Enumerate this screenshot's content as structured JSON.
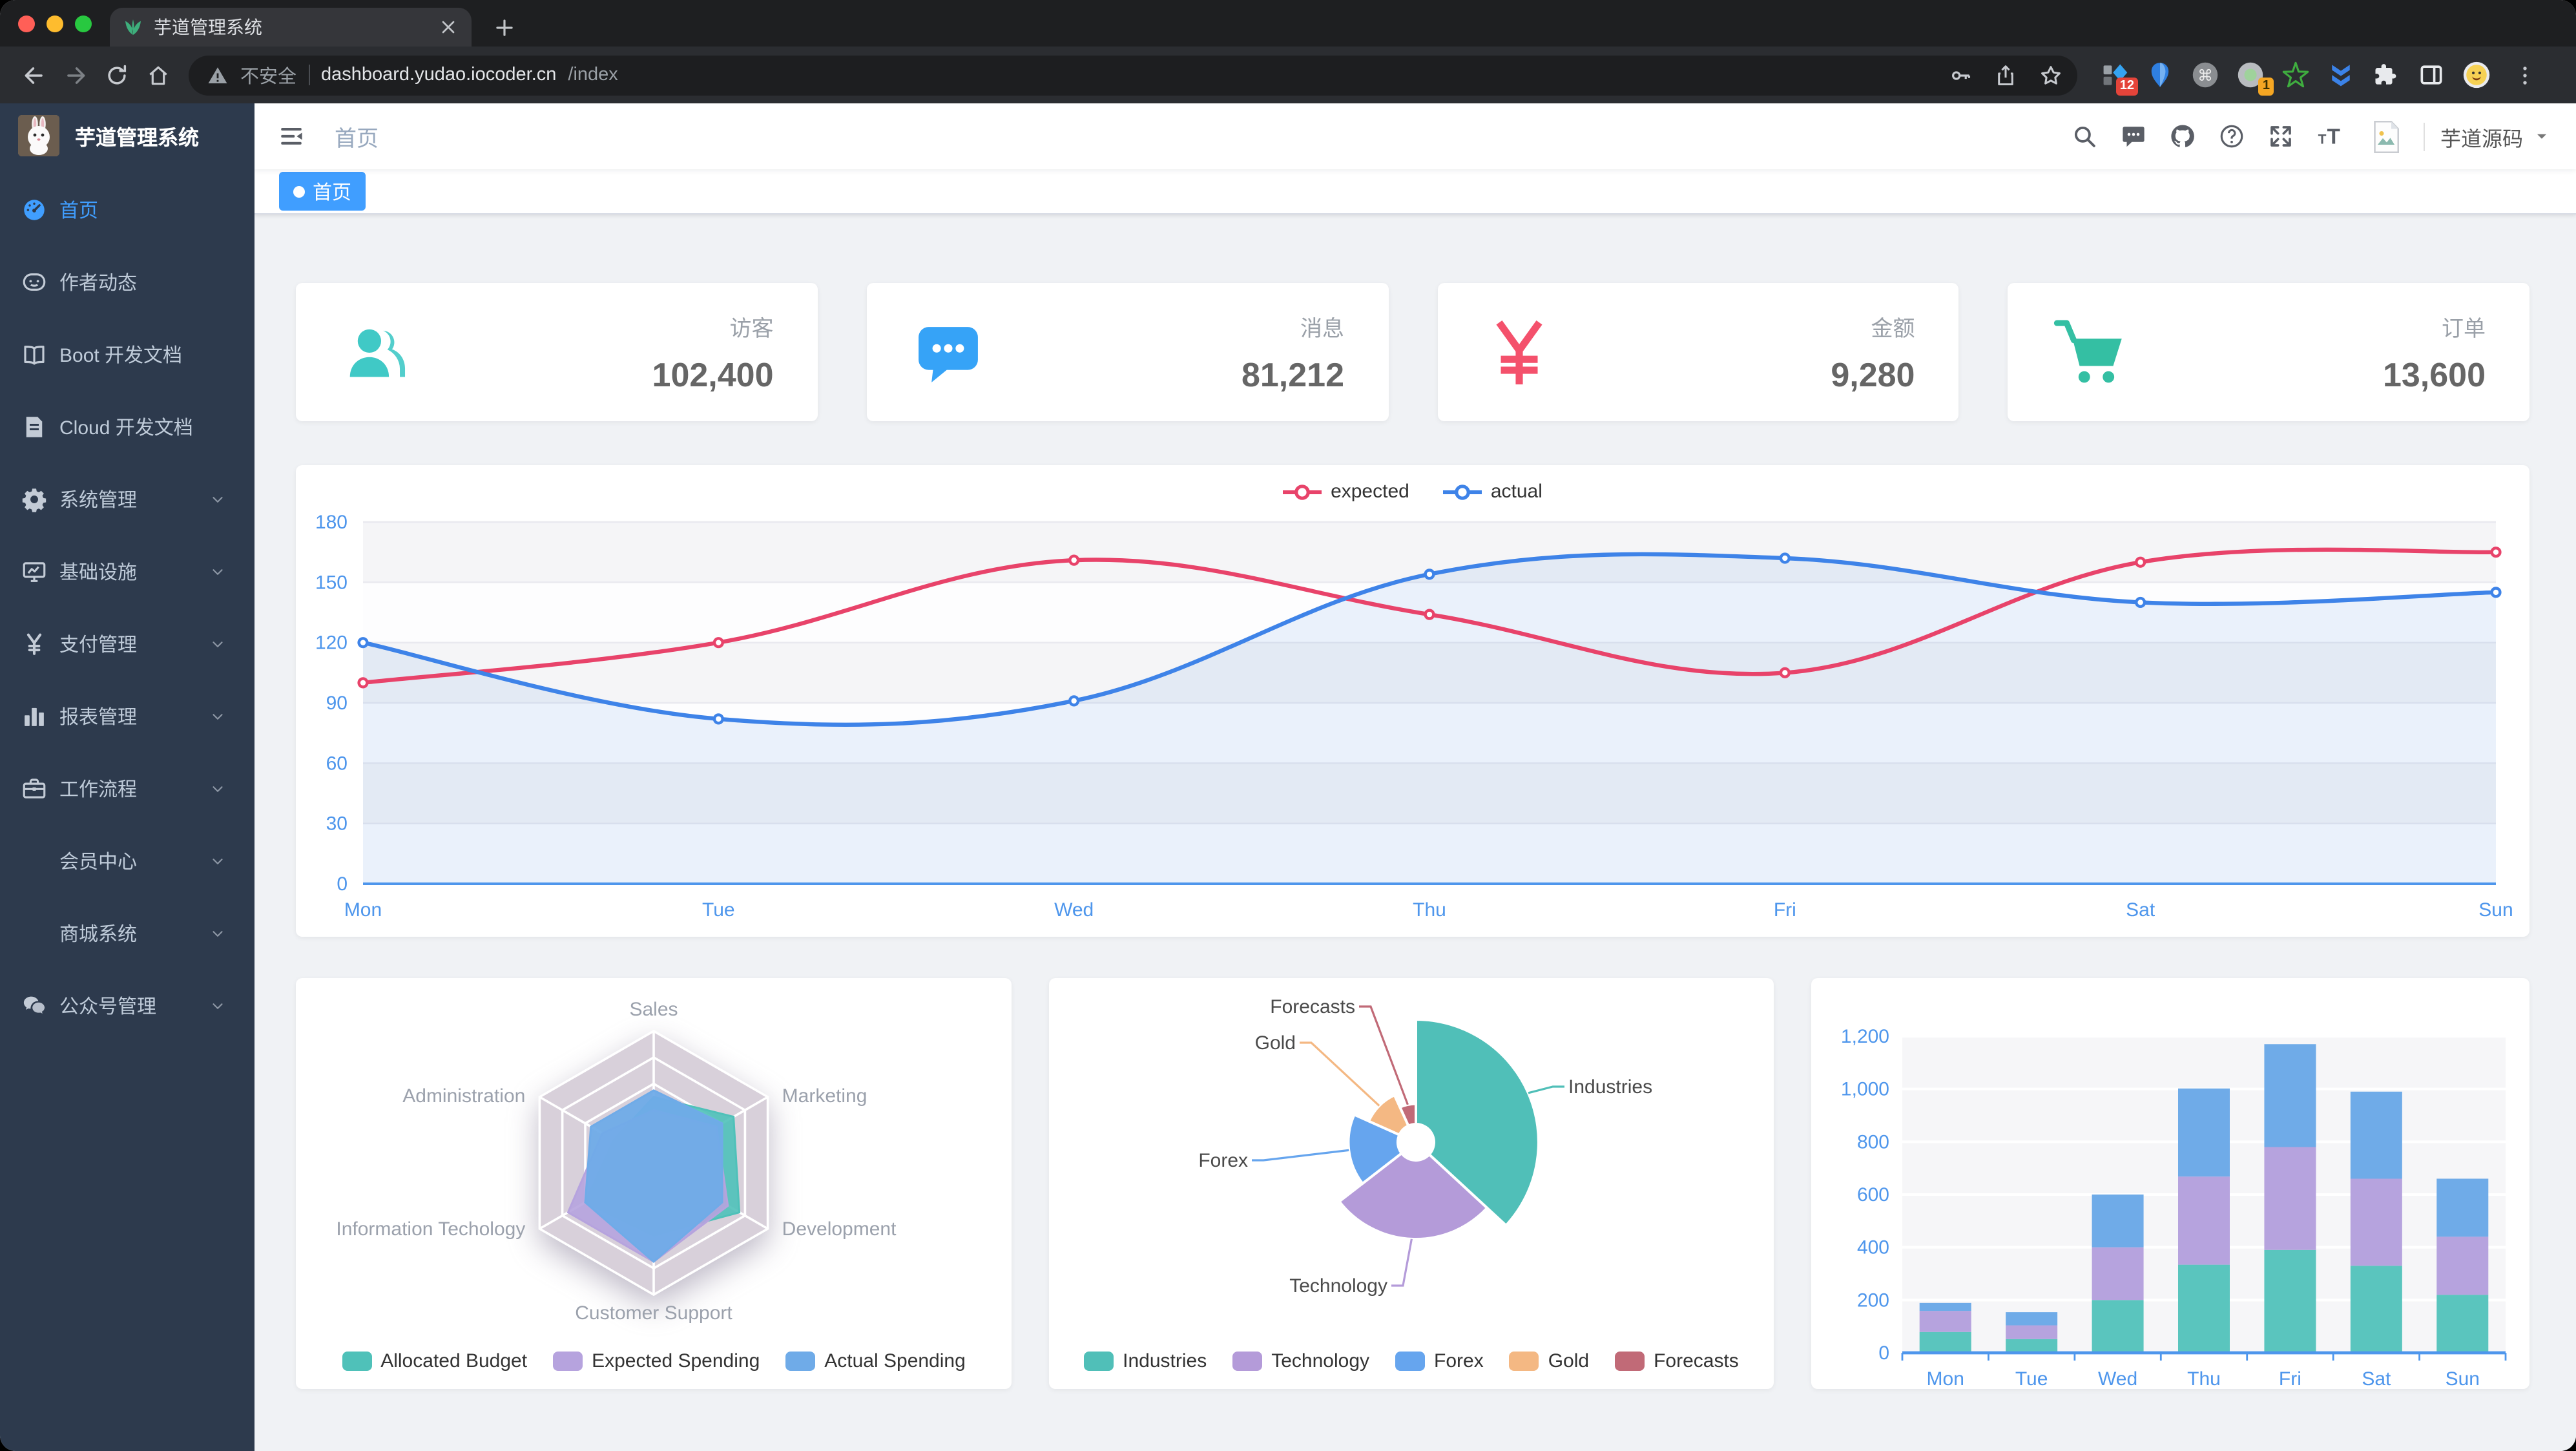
{
  "browser": {
    "tab_title": "芋道管理系统",
    "security_label": "不安全",
    "url_host": "dashboard.yudao.iocoder.cn",
    "url_path": "/index",
    "traffic_lights": {
      "close": "#ff5f57",
      "minimize": "#febc2e",
      "zoom": "#28c840"
    },
    "extensions": [
      {
        "name": "extension-grid",
        "badge": "12"
      },
      {
        "name": "extension-balloon",
        "badge": ""
      },
      {
        "name": "extension-command",
        "badge": ""
      },
      {
        "name": "extension-circle",
        "badge": "1"
      },
      {
        "name": "extension-star",
        "badge": ""
      },
      {
        "name": "extension-chevrons",
        "badge": ""
      },
      {
        "name": "puzzle",
        "badge": ""
      },
      {
        "name": "sidepanel",
        "badge": ""
      },
      {
        "name": "profile-avatar",
        "badge": ""
      }
    ]
  },
  "theme": {
    "sidebar_bg": "#2d3a4d",
    "accent_blue": "#409eff",
    "content_bg": "#f0f2f5",
    "axis_blue": "#4e96ec"
  },
  "sidebar": {
    "logo_title": "芋道管理系统",
    "items": [
      {
        "label": "首页",
        "icon": "dashboard-icon",
        "active": true,
        "arrow": false
      },
      {
        "label": "作者动态",
        "icon": "face-icon",
        "active": false,
        "arrow": false
      },
      {
        "label": "Boot 开发文档",
        "icon": "book-icon",
        "active": false,
        "arrow": false
      },
      {
        "label": "Cloud 开发文档",
        "icon": "document-icon",
        "active": false,
        "arrow": false
      },
      {
        "label": "系统管理",
        "icon": "gear-icon",
        "active": false,
        "arrow": true
      },
      {
        "label": "基础设施",
        "icon": "monitor-icon",
        "active": false,
        "arrow": true
      },
      {
        "label": "支付管理",
        "icon": "yen-icon",
        "active": false,
        "arrow": true
      },
      {
        "label": "报表管理",
        "icon": "barchart-icon",
        "active": false,
        "arrow": true
      },
      {
        "label": "工作流程",
        "icon": "toolbox-icon",
        "active": false,
        "arrow": true
      },
      {
        "label": "会员中心",
        "icon": "",
        "active": false,
        "arrow": true
      },
      {
        "label": "商城系统",
        "icon": "",
        "active": false,
        "arrow": true
      },
      {
        "label": "公众号管理",
        "icon": "wechat-icon",
        "active": false,
        "arrow": true
      }
    ]
  },
  "header": {
    "breadcrumb": "首页",
    "right_icons": [
      "search-icon",
      "message-icon",
      "github-icon",
      "question-icon",
      "fullscreen-icon",
      "font-size-icon"
    ],
    "username": "芋道源码"
  },
  "tags": [
    {
      "label": "首页",
      "active": true
    }
  ],
  "panels": [
    {
      "label": "访客",
      "value": "102,400",
      "color": "#40c9c6",
      "icon": "panel-people-icon"
    },
    {
      "label": "消息",
      "value": "81,212",
      "color": "#36a3f7",
      "icon": "panel-message-icon"
    },
    {
      "label": "金额",
      "value": "9,280",
      "color": "#f4516c",
      "icon": "panel-money-icon"
    },
    {
      "label": "订单",
      "value": "13,600",
      "color": "#34bfa3",
      "icon": "panel-cart-icon"
    }
  ],
  "chart_data": [
    {
      "id": "line",
      "type": "line",
      "title": "",
      "categories": [
        "Mon",
        "Tue",
        "Wed",
        "Thu",
        "Fri",
        "Sat",
        "Sun"
      ],
      "series": [
        {
          "name": "expected",
          "color": "#E8436A",
          "values": [
            100,
            120,
            161,
            134,
            105,
            160,
            165
          ]
        },
        {
          "name": "actual",
          "color": "#3E83E8",
          "values": [
            120,
            82,
            91,
            154,
            162,
            140,
            145
          ]
        }
      ],
      "xlabel": "",
      "ylabel": "",
      "ylim": [
        0,
        180
      ],
      "yticks": [
        0,
        30,
        60,
        90,
        120,
        150,
        180
      ],
      "grid": true,
      "legend_position": "top",
      "smooth": true
    },
    {
      "id": "radar",
      "type": "radar",
      "indicators": [
        {
          "name": "Sales",
          "max": 10000
        },
        {
          "name": "Administration",
          "max": 20000
        },
        {
          "name": "Information Techology",
          "max": 20000
        },
        {
          "name": "Customer Support",
          "max": 20000
        },
        {
          "name": "Development",
          "max": 20000
        },
        {
          "name": "Marketing",
          "max": 20000
        }
      ],
      "series": [
        {
          "name": "Allocated Budget",
          "color": "#4FC1B9",
          "values": [
            5000,
            7000,
            12000,
            11000,
            15000,
            14000
          ]
        },
        {
          "name": "Expected Spending",
          "color": "#B6A3DE",
          "values": [
            4000,
            9000,
            15000,
            15000,
            13000,
            11000
          ]
        },
        {
          "name": "Actual Spending",
          "color": "#6FABE8",
          "values": [
            5500,
            11000,
            12000,
            15000,
            12000,
            12000
          ]
        }
      ],
      "legend_position": "bottom"
    },
    {
      "id": "pie",
      "type": "pie",
      "rose": true,
      "slices": [
        {
          "name": "Industries",
          "value": 320,
          "color": "#50BFB8"
        },
        {
          "name": "Technology",
          "value": 240,
          "color": "#B49BD9"
        },
        {
          "name": "Forex",
          "value": 149,
          "color": "#66A5EE"
        },
        {
          "name": "Gold",
          "value": 100,
          "color": "#F4B883"
        },
        {
          "name": "Forecasts",
          "value": 59,
          "color": "#C16A77"
        }
      ],
      "legend_position": "bottom"
    },
    {
      "id": "bar",
      "type": "bar",
      "stacked": true,
      "categories": [
        "Mon",
        "Tue",
        "Wed",
        "Thu",
        "Fri",
        "Sat",
        "Sun"
      ],
      "series": [
        {
          "color": "#5AC5BE",
          "values": [
            79,
            52,
            200,
            334,
            390,
            330,
            220
          ]
        },
        {
          "color": "#B6A3DE",
          "values": [
            80,
            52,
            200,
            334,
            390,
            330,
            220
          ]
        },
        {
          "color": "#6FABE8",
          "values": [
            30,
            50,
            200,
            334,
            390,
            330,
            220
          ]
        }
      ],
      "ylim": [
        0,
        1200
      ],
      "yticks": [
        0,
        200,
        400,
        600,
        800,
        1000,
        1200
      ],
      "grid": true
    }
  ]
}
